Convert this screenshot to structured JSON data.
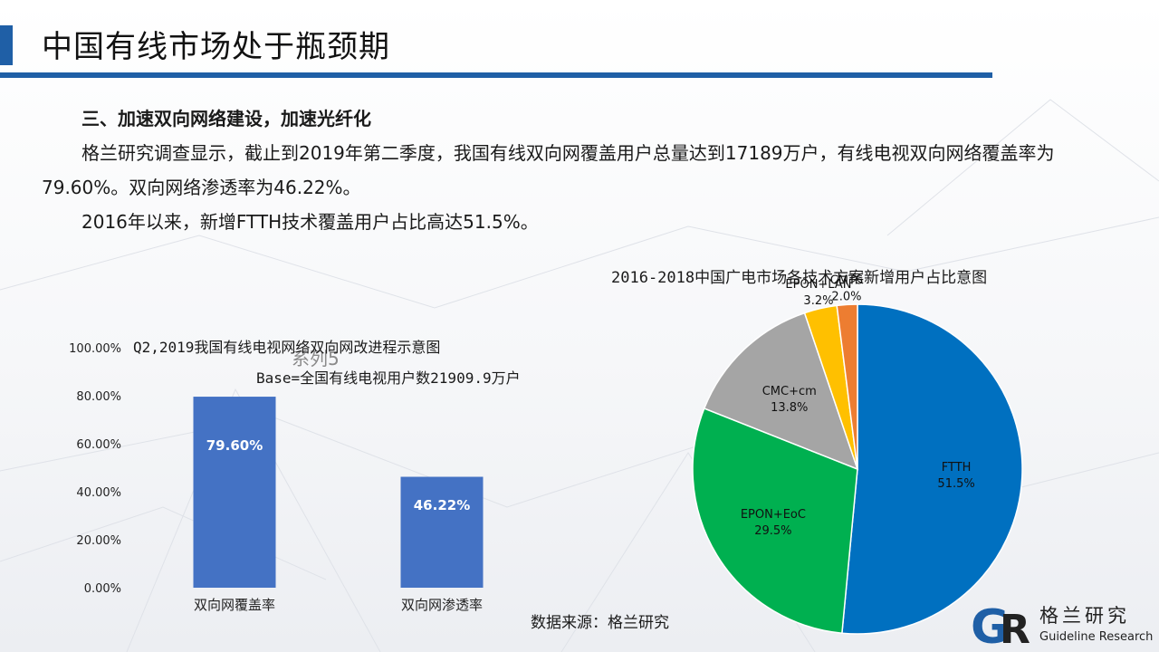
{
  "header": {
    "title": "中国有线市场处于瓶颈期"
  },
  "body": {
    "heading": "三、加速双向网络建设，加速光纤化",
    "paragraph1": "格兰研究调查显示，截止到2019年第二季度，我国有线双向网覆盖用户总量达到17189万户，有线电视双向网络覆盖率为79.60%。双向网络渗透率为46.22%。",
    "paragraph2": "2016年以来，新增FTTH技术覆盖用户占比高达51.5%。"
  },
  "source_note": "数据来源：格兰研究",
  "logo": {
    "mark_g": "G",
    "mark_r": "R",
    "name_cn": "格兰研究",
    "name_en": "Guideline Research",
    "colors": {
      "blue": "#1f5fa6",
      "dark": "#222222"
    }
  },
  "chart_data": [
    {
      "type": "bar",
      "title": "Q2,2019我国有线电视网络双向网改进程示意图",
      "subtitle": "Base=全国有线电视用户数21909.9万户",
      "categories": [
        "双向网覆盖率",
        "双向网渗透率"
      ],
      "series": [
        {
          "name": "系列5",
          "values": [
            79.6,
            46.22
          ],
          "color": "#4472c4"
        }
      ],
      "data_labels": [
        "79.60%",
        "46.22%"
      ],
      "ylim": [
        0,
        100
      ],
      "yticks": [
        0,
        20,
        40,
        60,
        80,
        100
      ],
      "ytick_labels": [
        "0.00%",
        "20.00%",
        "40.00%",
        "60.00%",
        "80.00%",
        "100.00%"
      ],
      "grid": false,
      "legend": "none"
    },
    {
      "type": "pie",
      "title": "2016-2018中国广电市场各技术方案新增用户占比意图",
      "slices": [
        {
          "label": "FTTH",
          "value": 51.5,
          "display": "51.5%",
          "color": "#0070c0"
        },
        {
          "label": "EPON+EoC",
          "value": 29.5,
          "display": "29.5%",
          "color": "#00b050"
        },
        {
          "label": "CMC+cm",
          "value": 13.8,
          "display": "13.8%",
          "color": "#a5a5a5"
        },
        {
          "label": "EPON+LAN",
          "value": 3.2,
          "display": "3.2%",
          "color": "#ffc000"
        },
        {
          "label": "CMTS",
          "value": 2.0,
          "display": "2.0%",
          "color": "#ed7d31"
        }
      ],
      "start": "12 o'clock",
      "direction": "clockwise",
      "legend": "none"
    }
  ]
}
